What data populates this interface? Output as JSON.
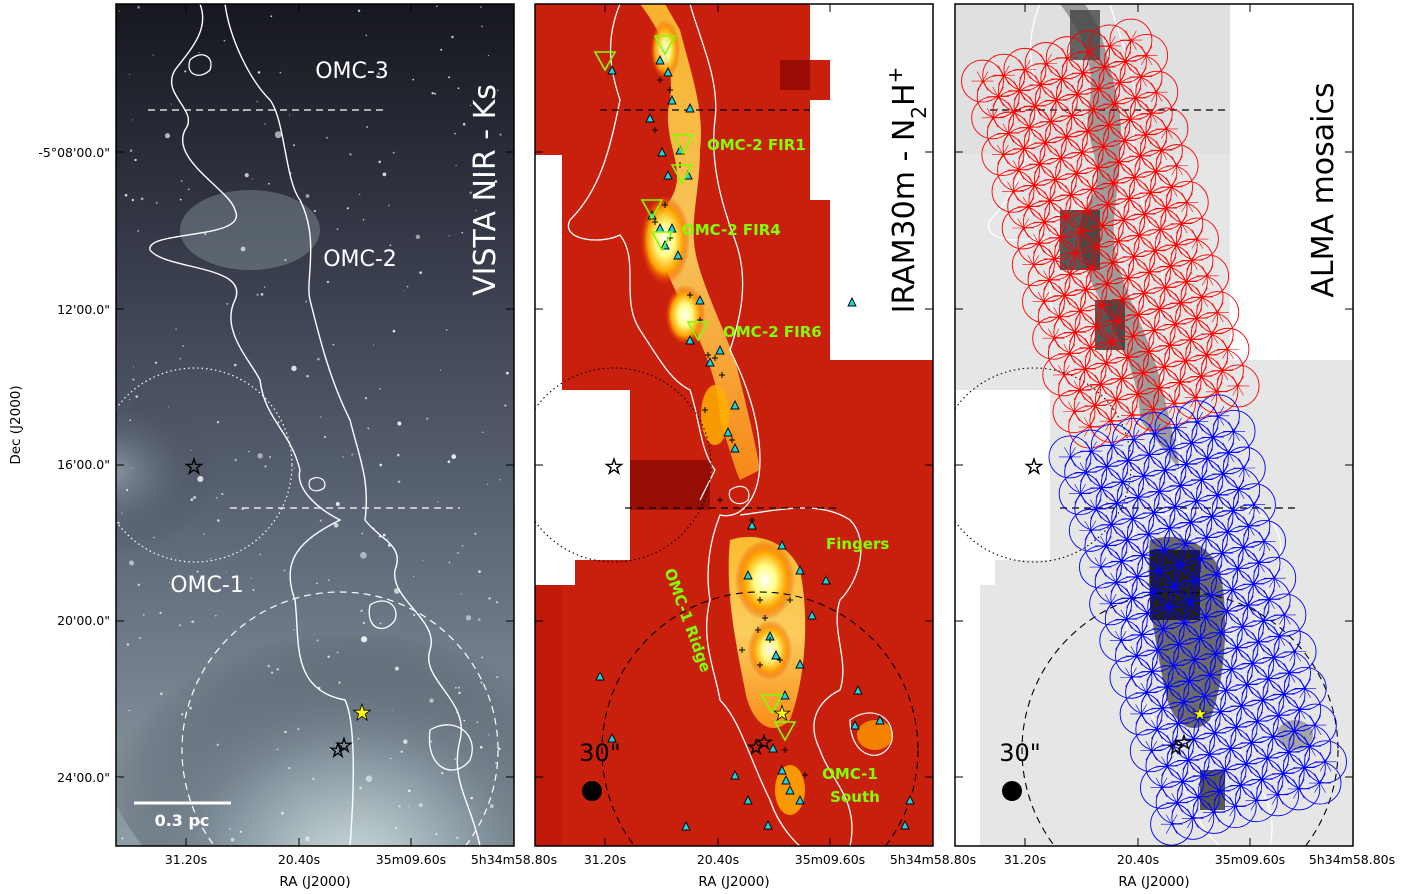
{
  "figure": {
    "ylabel": "Dec (J2000)",
    "xlabel": "RA (J2000)",
    "dec_ticks": [
      "-5°08'00.0\"",
      "12'00.0\"",
      "16'00.0\"",
      "20'00.0\"",
      "24'00.0\""
    ],
    "ra_ticks": [
      "31.20s",
      "20.40s",
      "35m09.60s",
      "5h34m58.80s"
    ]
  },
  "panels": [
    {
      "id": "nir",
      "title": "VISTA NIR - Ks",
      "labels": {
        "omc3": "OMC-3",
        "omc2": "OMC-2",
        "omc1": "OMC-1"
      },
      "scalebar": "0.3 pc"
    },
    {
      "id": "iram",
      "title_main": "IRAM30m - N",
      "title_sub": "2",
      "title_tail": "H",
      "title_sup": "+",
      "labels": {
        "fir1": "OMC-2 FIR1",
        "fir4": "OMC-2 FIR4",
        "fir6": "OMC-2 FIR6",
        "fingers": "Fingers",
        "ridge": "OMC-1 Ridge",
        "south_1": "OMC-1",
        "south_2": "South"
      },
      "beam": "30\""
    },
    {
      "id": "alma",
      "title": "ALMA mosaics",
      "beam": "30\"",
      "mosaic_colors": {
        "north": "#ff0000",
        "south": "#0000ff"
      }
    }
  ]
}
